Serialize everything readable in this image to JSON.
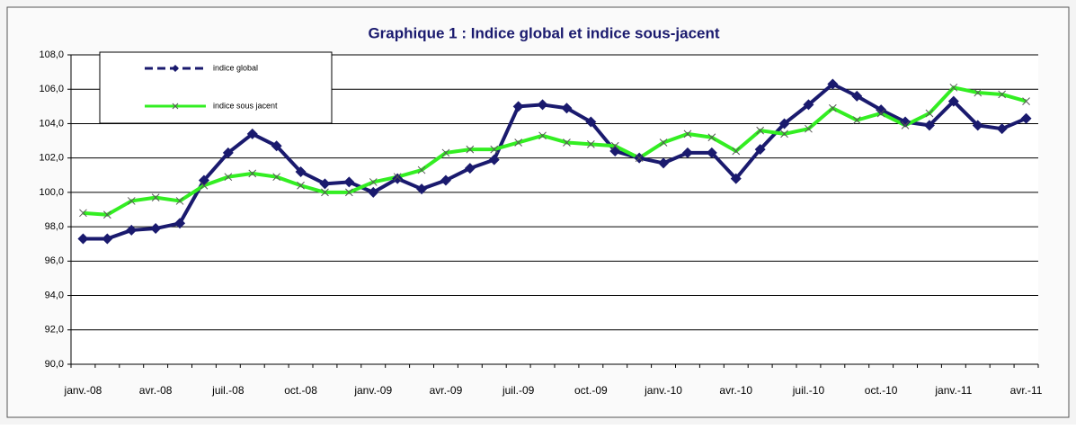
{
  "chart_data": {
    "type": "line",
    "title": "Graphique 1 : Indice global et indice sous-jacent",
    "categories": [
      "janv.-08",
      null,
      null,
      "avr.-08",
      null,
      null,
      "juil.-08",
      null,
      null,
      "oct.-08",
      null,
      null,
      "janv.-09",
      null,
      null,
      "avr.-09",
      null,
      null,
      "juil.-09",
      null,
      null,
      "oct.-09",
      null,
      null,
      "janv.-10",
      null,
      null,
      "avr.-10",
      null,
      null,
      "juil.-10",
      null,
      null,
      "oct.-10",
      null,
      null,
      "janv.-11",
      null,
      null,
      "avr.-11"
    ],
    "series": [
      {
        "name": "indice global",
        "color": "#1a1a6e",
        "marker": "diamond",
        "dash": true,
        "values": [
          97.3,
          97.3,
          97.8,
          97.9,
          98.2,
          100.7,
          102.3,
          103.4,
          102.7,
          101.2,
          100.5,
          100.6,
          100.0,
          100.8,
          100.2,
          100.7,
          101.4,
          101.9,
          105.0,
          105.1,
          104.9,
          104.1,
          102.4,
          102.0,
          101.7,
          102.3,
          102.3,
          100.8,
          102.5,
          104.0,
          105.1,
          106.3,
          105.6,
          104.8,
          104.1,
          103.9,
          105.3,
          103.9,
          103.7,
          104.3
        ]
      },
      {
        "name": "indice sous jacent",
        "color": "#33ee22",
        "marker": "x",
        "dash": false,
        "values": [
          98.8,
          98.7,
          99.5,
          99.7,
          99.5,
          100.4,
          100.9,
          101.1,
          100.9,
          100.4,
          100.0,
          100.0,
          100.6,
          100.9,
          101.3,
          102.3,
          102.5,
          102.5,
          102.9,
          103.3,
          102.9,
          102.8,
          102.7,
          102.0,
          102.9,
          103.4,
          103.2,
          102.4,
          103.6,
          103.4,
          103.7,
          104.9,
          104.2,
          104.6,
          103.9,
          104.6,
          106.1,
          105.8,
          105.7,
          105.3
        ]
      }
    ],
    "ylim": [
      90,
      108
    ],
    "yticks": [
      {
        "value": 90,
        "label": "90,0"
      },
      {
        "value": 92,
        "label": "92,0"
      },
      {
        "value": 94,
        "label": "94,0"
      },
      {
        "value": 96,
        "label": "96,0"
      },
      {
        "value": 98,
        "label": "98,0"
      },
      {
        "value": 100,
        "label": "100,0"
      },
      {
        "value": 102,
        "label": "102,0"
      },
      {
        "value": 104,
        "label": "104,0"
      },
      {
        "value": 106,
        "label": "106,0"
      },
      {
        "value": 108,
        "label": "108,0"
      }
    ],
    "grid": true,
    "legend": "upper left"
  }
}
